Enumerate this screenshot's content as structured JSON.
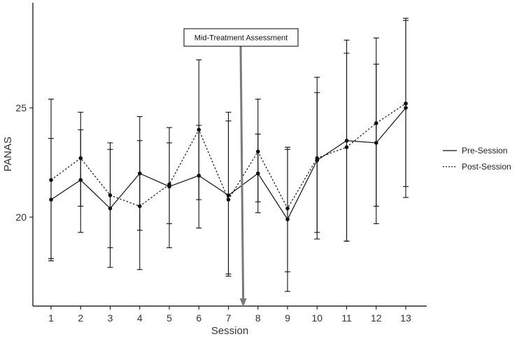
{
  "chart_data": {
    "type": "line",
    "title": "",
    "xlabel": "Session",
    "ylabel": "PANAS",
    "x": [
      1,
      2,
      3,
      4,
      5,
      6,
      7,
      8,
      9,
      10,
      11,
      12,
      13
    ],
    "x_tick_labels": [
      "1",
      "2",
      "3",
      "4",
      "5",
      "6",
      "7",
      "8",
      "9",
      "10",
      "11",
      "12",
      "13"
    ],
    "y_ticks": [
      20,
      25
    ],
    "y_tick_labels": [
      "20",
      "25"
    ],
    "ylim": [
      16,
      29.5
    ],
    "grid": false,
    "legend_position": "right",
    "annotation": {
      "text": "Mid-Treatment Assessment",
      "session": 7.5
    },
    "series": [
      {
        "name": "Pre-Session",
        "line_style": "solid",
        "values": [
          20.8,
          21.7,
          20.4,
          22.0,
          21.4,
          21.9,
          21.0,
          22.0,
          19.9,
          22.6,
          23.5,
          23.4,
          25.0
        ],
        "error_low": [
          18.1,
          19.3,
          17.7,
          17.6,
          18.6,
          19.5,
          17.4,
          20.2,
          16.6,
          19.0,
          18.9,
          19.7,
          20.9
        ],
        "error_high": [
          23.6,
          24.0,
          23.1,
          24.6,
          24.1,
          24.2,
          24.8,
          23.8,
          23.1,
          25.7,
          28.1,
          27.0,
          29.1
        ]
      },
      {
        "name": "Post-Session",
        "line_style": "dotted",
        "values": [
          21.7,
          22.7,
          21.0,
          20.5,
          21.5,
          24.0,
          20.8,
          23.0,
          20.4,
          22.7,
          23.2,
          24.3,
          25.2
        ],
        "error_low": [
          18.0,
          20.5,
          18.6,
          19.4,
          19.7,
          20.8,
          17.3,
          20.7,
          17.5,
          19.3,
          18.9,
          20.5,
          21.4
        ],
        "error_high": [
          25.4,
          24.8,
          23.4,
          23.5,
          23.4,
          27.2,
          24.4,
          25.4,
          23.2,
          26.4,
          27.5,
          28.2,
          29.0
        ]
      }
    ]
  }
}
